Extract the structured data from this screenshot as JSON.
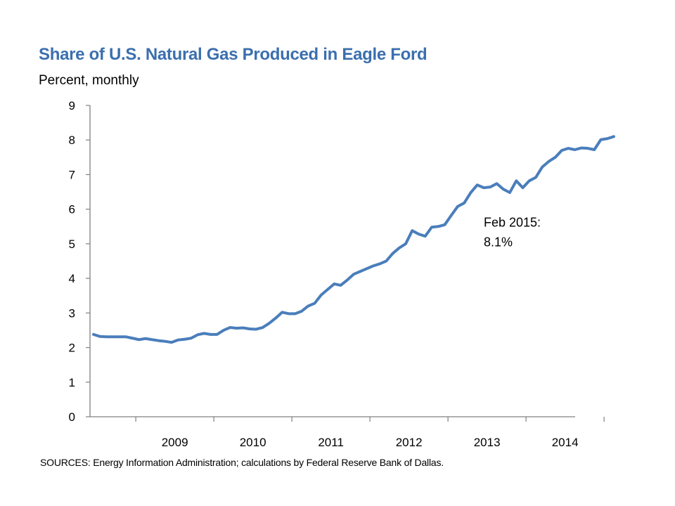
{
  "chart_data": {
    "type": "line",
    "title": "Share of U.S. Natural Gas Produced in Eagle Ford",
    "subtitle": "Percent, monthly",
    "xlabel": "",
    "ylabel": "",
    "ylim": [
      0,
      9
    ],
    "yticks": [
      0,
      1,
      2,
      3,
      4,
      5,
      6,
      7,
      8,
      9
    ],
    "x_range": [
      "2008-06",
      "2015-02"
    ],
    "x_tick_labels": [
      "2009",
      "2010",
      "2011",
      "2012",
      "2013",
      "2014"
    ],
    "grid": false,
    "legend": "none",
    "line_color": "#4a7ebb",
    "series": [
      {
        "x": [
          "2008-06",
          "2008-07",
          "2008-08",
          "2008-09",
          "2008-10",
          "2008-11",
          "2008-12",
          "2009-01",
          "2009-02",
          "2009-03",
          "2009-04",
          "2009-05",
          "2009-06",
          "2009-07",
          "2009-08",
          "2009-09",
          "2009-10",
          "2009-11",
          "2009-12",
          "2010-01",
          "2010-02",
          "2010-03",
          "2010-04",
          "2010-05",
          "2010-06",
          "2010-07",
          "2010-08",
          "2010-09",
          "2010-10",
          "2010-11",
          "2010-12",
          "2011-01",
          "2011-02",
          "2011-03",
          "2011-04",
          "2011-05",
          "2011-06",
          "2011-07",
          "2011-08",
          "2011-09",
          "2011-10",
          "2011-11",
          "2011-12",
          "2012-01",
          "2012-02",
          "2012-03",
          "2012-04",
          "2012-05",
          "2012-06",
          "2012-07",
          "2012-08",
          "2012-09",
          "2012-10",
          "2012-11",
          "2012-12",
          "2013-01",
          "2013-02",
          "2013-03",
          "2013-04",
          "2013-05",
          "2013-06",
          "2013-07",
          "2013-08",
          "2013-09",
          "2013-10",
          "2013-11",
          "2013-12",
          "2014-01",
          "2014-02",
          "2014-03",
          "2014-04",
          "2014-05",
          "2014-06",
          "2014-07",
          "2014-08",
          "2014-09",
          "2014-10",
          "2014-11",
          "2014-12",
          "2015-01",
          "2015-02"
        ],
        "values": [
          2.38,
          2.32,
          2.31,
          2.31,
          2.31,
          2.31,
          2.27,
          2.23,
          2.26,
          2.23,
          2.2,
          2.18,
          2.15,
          2.22,
          2.24,
          2.27,
          2.37,
          2.41,
          2.38,
          2.38,
          2.5,
          2.58,
          2.56,
          2.57,
          2.54,
          2.53,
          2.58,
          2.7,
          2.85,
          3.02,
          2.98,
          2.98,
          3.05,
          3.2,
          3.28,
          3.52,
          3.68,
          3.84,
          3.8,
          3.95,
          4.12,
          4.2,
          4.28,
          4.36,
          4.42,
          4.5,
          4.72,
          4.88,
          5.0,
          5.38,
          5.28,
          5.22,
          5.48,
          5.5,
          5.55,
          5.82,
          6.08,
          6.18,
          6.48,
          6.7,
          6.62,
          6.64,
          6.74,
          6.58,
          6.48,
          6.82,
          6.62,
          6.82,
          6.92,
          7.22,
          7.38,
          7.5,
          7.7,
          7.76,
          7.72,
          7.77,
          7.76,
          7.72,
          8.01,
          8.04,
          8.1
        ]
      }
    ],
    "annotations": [
      {
        "lines": [
          "Feb 2015:",
          "8.1%"
        ],
        "date": "2013-06",
        "value": 5.5
      }
    ]
  },
  "source_note": "SOURCES: Energy Information Administration; calculations by Federal Reserve Bank of Dallas."
}
